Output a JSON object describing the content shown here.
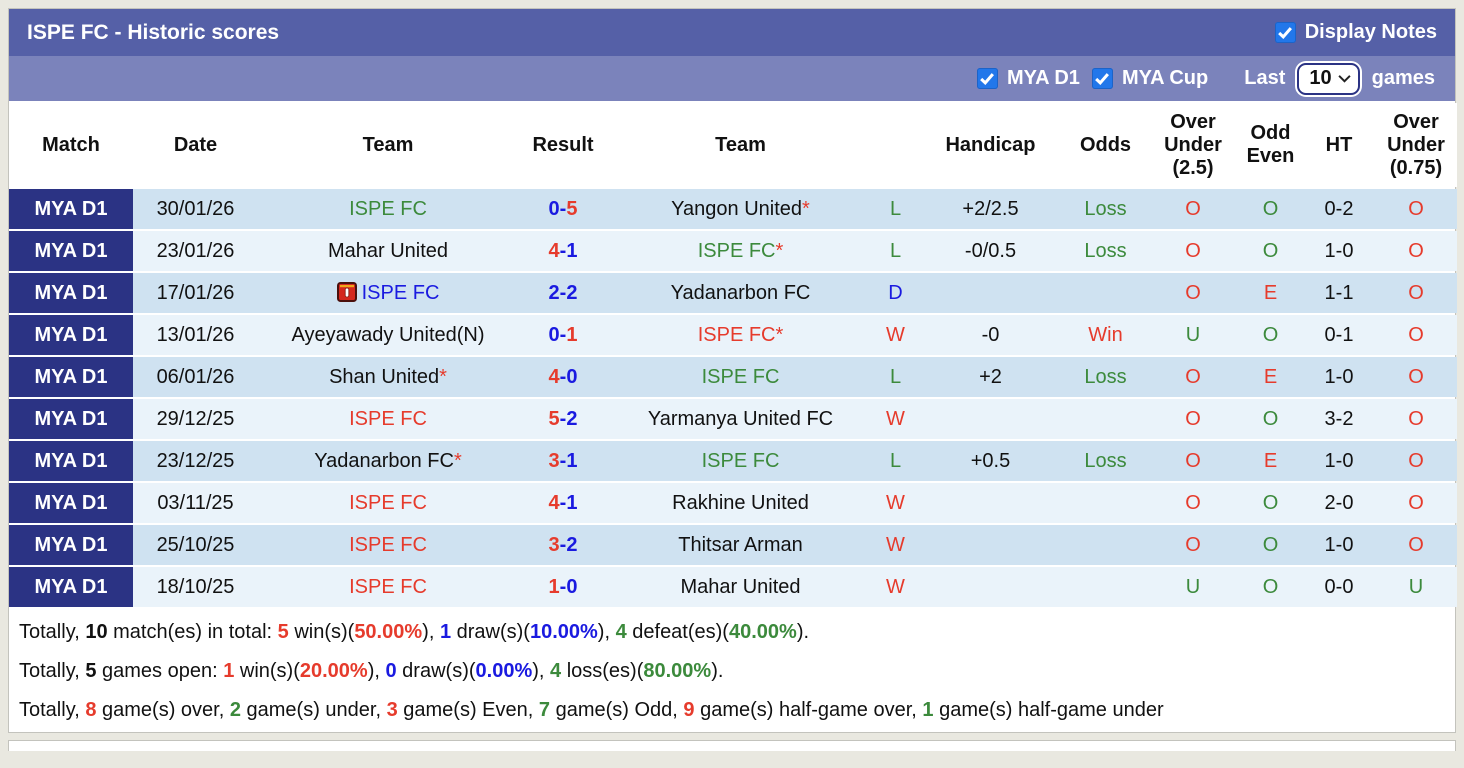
{
  "colors": {
    "red": "#e63b2c",
    "green": "#3c8a3c",
    "blue": "#1a1ae0",
    "black": "#111111",
    "navy": "#2b3384",
    "header_dark": "#5560a7",
    "header_light": "#7b83bb",
    "checkbox_blue": "#2277ea",
    "row_dark": "#cfe2f1",
    "row_light": "#eaf3fa"
  },
  "title_bar": {
    "title": "ISPE FC - Historic scores",
    "display_notes_label": "Display Notes"
  },
  "filter_bar": {
    "league1_label": "MYA D1",
    "league2_label": "MYA Cup",
    "last_label": "Last",
    "games_count": "10",
    "games_label": "games"
  },
  "table": {
    "headers": [
      "Match",
      "Date",
      "Team",
      "Result",
      "Team",
      "",
      "Handicap",
      "Odds",
      "Over\nUnder\n(2.5)",
      "Odd\nEven",
      "HT",
      "Over\nUnder\n(0.75)"
    ],
    "rows": [
      {
        "league": "MYA D1",
        "date": "30/01/26",
        "home": {
          "text": "ISPE FC",
          "color": "green",
          "star": false,
          "note_icon": false
        },
        "score": {
          "home": "0",
          "away": "5",
          "home_color": "blue",
          "away_color": "red"
        },
        "away": {
          "text": "Yangon United",
          "color": "black",
          "star": true
        },
        "wld": {
          "text": "L",
          "color": "green"
        },
        "handicap": "+2/2.5",
        "odds": {
          "text": "Loss",
          "color": "green"
        },
        "ou25": {
          "text": "O",
          "color": "red"
        },
        "oddeven": {
          "text": "O",
          "color": "green"
        },
        "ht": "0-2",
        "ou075": {
          "text": "O",
          "color": "red"
        }
      },
      {
        "league": "MYA D1",
        "date": "23/01/26",
        "home": {
          "text": "Mahar United",
          "color": "black",
          "star": false,
          "note_icon": false
        },
        "score": {
          "home": "4",
          "away": "1",
          "home_color": "red",
          "away_color": "blue"
        },
        "away": {
          "text": "ISPE FC",
          "color": "green",
          "star": true
        },
        "wld": {
          "text": "L",
          "color": "green"
        },
        "handicap": "-0/0.5",
        "odds": {
          "text": "Loss",
          "color": "green"
        },
        "ou25": {
          "text": "O",
          "color": "red"
        },
        "oddeven": {
          "text": "O",
          "color": "green"
        },
        "ht": "1-0",
        "ou075": {
          "text": "O",
          "color": "red"
        }
      },
      {
        "league": "MYA D1",
        "date": "17/01/26",
        "home": {
          "text": "ISPE FC",
          "color": "blue",
          "star": false,
          "note_icon": true
        },
        "score": {
          "home": "2",
          "away": "2",
          "home_color": "blue",
          "away_color": "blue"
        },
        "away": {
          "text": "Yadanarbon FC",
          "color": "black",
          "star": false
        },
        "wld": {
          "text": "D",
          "color": "blue"
        },
        "handicap": "",
        "odds": {
          "text": "",
          "color": "black"
        },
        "ou25": {
          "text": "O",
          "color": "red"
        },
        "oddeven": {
          "text": "E",
          "color": "red"
        },
        "ht": "1-1",
        "ou075": {
          "text": "O",
          "color": "red"
        }
      },
      {
        "league": "MYA D1",
        "date": "13/01/26",
        "home": {
          "text": "Ayeyawady United(N)",
          "color": "black",
          "star": false,
          "note_icon": false
        },
        "score": {
          "home": "0",
          "away": "1",
          "home_color": "blue",
          "away_color": "red"
        },
        "away": {
          "text": "ISPE FC",
          "color": "red",
          "star": true
        },
        "wld": {
          "text": "W",
          "color": "red"
        },
        "handicap": "-0",
        "odds": {
          "text": "Win",
          "color": "red"
        },
        "ou25": {
          "text": "U",
          "color": "green"
        },
        "oddeven": {
          "text": "O",
          "color": "green"
        },
        "ht": "0-1",
        "ou075": {
          "text": "O",
          "color": "red"
        }
      },
      {
        "league": "MYA D1",
        "date": "06/01/26",
        "home": {
          "text": "Shan United",
          "color": "black",
          "star": true,
          "note_icon": false
        },
        "score": {
          "home": "4",
          "away": "0",
          "home_color": "red",
          "away_color": "blue"
        },
        "away": {
          "text": "ISPE FC",
          "color": "green",
          "star": false
        },
        "wld": {
          "text": "L",
          "color": "green"
        },
        "handicap": "+2",
        "odds": {
          "text": "Loss",
          "color": "green"
        },
        "ou25": {
          "text": "O",
          "color": "red"
        },
        "oddeven": {
          "text": "E",
          "color": "red"
        },
        "ht": "1-0",
        "ou075": {
          "text": "O",
          "color": "red"
        }
      },
      {
        "league": "MYA D1",
        "date": "29/12/25",
        "home": {
          "text": "ISPE FC",
          "color": "red",
          "star": false,
          "note_icon": false
        },
        "score": {
          "home": "5",
          "away": "2",
          "home_color": "red",
          "away_color": "blue"
        },
        "away": {
          "text": "Yarmanya United FC",
          "color": "black",
          "star": false
        },
        "wld": {
          "text": "W",
          "color": "red"
        },
        "handicap": "",
        "odds": {
          "text": "",
          "color": "black"
        },
        "ou25": {
          "text": "O",
          "color": "red"
        },
        "oddeven": {
          "text": "O",
          "color": "green"
        },
        "ht": "3-2",
        "ou075": {
          "text": "O",
          "color": "red"
        }
      },
      {
        "league": "MYA D1",
        "date": "23/12/25",
        "home": {
          "text": "Yadanarbon FC",
          "color": "black",
          "star": true,
          "note_icon": false
        },
        "score": {
          "home": "3",
          "away": "1",
          "home_color": "red",
          "away_color": "blue"
        },
        "away": {
          "text": "ISPE FC",
          "color": "green",
          "star": false
        },
        "wld": {
          "text": "L",
          "color": "green"
        },
        "handicap": "+0.5",
        "odds": {
          "text": "Loss",
          "color": "green"
        },
        "ou25": {
          "text": "O",
          "color": "red"
        },
        "oddeven": {
          "text": "E",
          "color": "red"
        },
        "ht": "1-0",
        "ou075": {
          "text": "O",
          "color": "red"
        }
      },
      {
        "league": "MYA D1",
        "date": "03/11/25",
        "home": {
          "text": "ISPE FC",
          "color": "red",
          "star": false,
          "note_icon": false
        },
        "score": {
          "home": "4",
          "away": "1",
          "home_color": "red",
          "away_color": "blue"
        },
        "away": {
          "text": "Rakhine United",
          "color": "black",
          "star": false
        },
        "wld": {
          "text": "W",
          "color": "red"
        },
        "handicap": "",
        "odds": {
          "text": "",
          "color": "black"
        },
        "ou25": {
          "text": "O",
          "color": "red"
        },
        "oddeven": {
          "text": "O",
          "color": "green"
        },
        "ht": "2-0",
        "ou075": {
          "text": "O",
          "color": "red"
        }
      },
      {
        "league": "MYA D1",
        "date": "25/10/25",
        "home": {
          "text": "ISPE FC",
          "color": "red",
          "star": false,
          "note_icon": false
        },
        "score": {
          "home": "3",
          "away": "2",
          "home_color": "red",
          "away_color": "blue"
        },
        "away": {
          "text": "Thitsar Arman",
          "color": "black",
          "star": false
        },
        "wld": {
          "text": "W",
          "color": "red"
        },
        "handicap": "",
        "odds": {
          "text": "",
          "color": "black"
        },
        "ou25": {
          "text": "O",
          "color": "red"
        },
        "oddeven": {
          "text": "O",
          "color": "green"
        },
        "ht": "1-0",
        "ou075": {
          "text": "O",
          "color": "red"
        }
      },
      {
        "league": "MYA D1",
        "date": "18/10/25",
        "home": {
          "text": "ISPE FC",
          "color": "red",
          "star": false,
          "note_icon": false
        },
        "score": {
          "home": "1",
          "away": "0",
          "home_color": "red",
          "away_color": "blue"
        },
        "away": {
          "text": "Mahar United",
          "color": "black",
          "star": false
        },
        "wld": {
          "text": "W",
          "color": "red"
        },
        "handicap": "",
        "odds": {
          "text": "",
          "color": "black"
        },
        "ou25": {
          "text": "U",
          "color": "green"
        },
        "oddeven": {
          "text": "O",
          "color": "green"
        },
        "ht": "0-0",
        "ou075": {
          "text": "U",
          "color": "green"
        }
      }
    ]
  },
  "summary": {
    "lines": [
      [
        {
          "t": "Totally, "
        },
        {
          "t": "10",
          "b": true
        },
        {
          "t": " match(es) in total: "
        },
        {
          "t": "5",
          "c": "red",
          "b": true
        },
        {
          "t": " win(s)("
        },
        {
          "t": "50.00%",
          "c": "red",
          "b": true
        },
        {
          "t": "), "
        },
        {
          "t": "1",
          "c": "blue",
          "b": true
        },
        {
          "t": " draw(s)("
        },
        {
          "t": "10.00%",
          "c": "blue",
          "b": true
        },
        {
          "t": "), "
        },
        {
          "t": "4",
          "c": "green",
          "b": true
        },
        {
          "t": " defeat(es)("
        },
        {
          "t": "40.00%",
          "c": "green",
          "b": true
        },
        {
          "t": ")."
        }
      ],
      [
        {
          "t": "Totally, "
        },
        {
          "t": "5",
          "b": true
        },
        {
          "t": " games open: "
        },
        {
          "t": "1",
          "c": "red",
          "b": true
        },
        {
          "t": " win(s)("
        },
        {
          "t": "20.00%",
          "c": "red",
          "b": true
        },
        {
          "t": "), "
        },
        {
          "t": "0",
          "c": "blue",
          "b": true
        },
        {
          "t": " draw(s)("
        },
        {
          "t": "0.00%",
          "c": "blue",
          "b": true
        },
        {
          "t": "), "
        },
        {
          "t": "4",
          "c": "green",
          "b": true
        },
        {
          "t": " loss(es)("
        },
        {
          "t": "80.00%",
          "c": "green",
          "b": true
        },
        {
          "t": ")."
        }
      ],
      [
        {
          "t": "Totally, "
        },
        {
          "t": "8",
          "c": "red",
          "b": true
        },
        {
          "t": " game(s) over, "
        },
        {
          "t": "2",
          "c": "green",
          "b": true
        },
        {
          "t": " game(s) under, "
        },
        {
          "t": "3",
          "c": "red",
          "b": true
        },
        {
          "t": " game(s) Even, "
        },
        {
          "t": "7",
          "c": "green",
          "b": true
        },
        {
          "t": " game(s) Odd, "
        },
        {
          "t": "9",
          "c": "red",
          "b": true
        },
        {
          "t": " game(s) half-game over, "
        },
        {
          "t": "1",
          "c": "green",
          "b": true
        },
        {
          "t": " game(s) half-game under"
        }
      ]
    ]
  }
}
